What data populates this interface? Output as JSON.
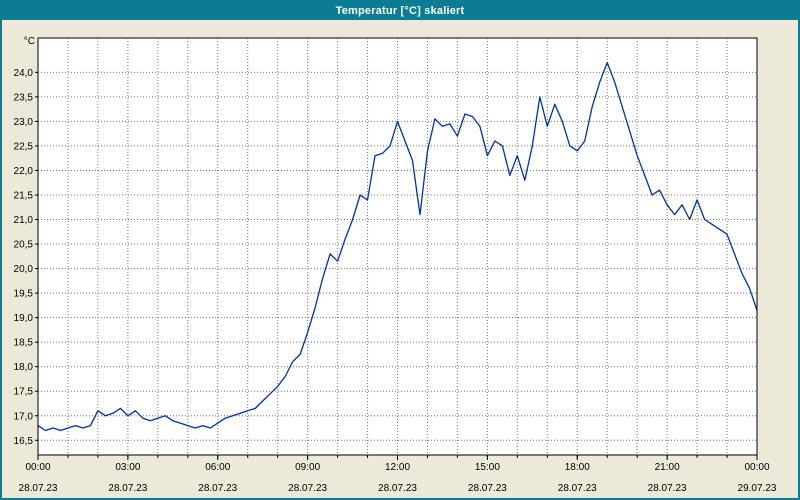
{
  "window": {
    "title": "Temperatur [°C] skaliert"
  },
  "colors": {
    "titlebar": "#0b7c94",
    "window_background": "#ece9d8",
    "plot_background": "#ffffff",
    "plot_border": "#000000",
    "grid": "#707070",
    "line": "#0033a0",
    "text": "#000000"
  },
  "chart_data": {
    "type": "line",
    "title": "Temperatur [°C] skaliert",
    "ylabel": "°C",
    "xlabel": "",
    "legend": "none",
    "grid": {
      "style": "dotted",
      "vertical_every_hours": 1,
      "horizontal_every_deg": 0.5
    },
    "xlim_hours": [
      0,
      24
    ],
    "ylim": [
      16.2,
      24.7
    ],
    "y_ticks": [
      {
        "value": 16.5,
        "label": "16,5"
      },
      {
        "value": 17.0,
        "label": "17,0"
      },
      {
        "value": 17.5,
        "label": "17,5"
      },
      {
        "value": 18.0,
        "label": "18,0"
      },
      {
        "value": 18.5,
        "label": "18,5"
      },
      {
        "value": 19.0,
        "label": "19,0"
      },
      {
        "value": 19.5,
        "label": "19,5"
      },
      {
        "value": 20.0,
        "label": "20,0"
      },
      {
        "value": 20.5,
        "label": "20,5"
      },
      {
        "value": 21.0,
        "label": "21,0"
      },
      {
        "value": 21.5,
        "label": "21,5"
      },
      {
        "value": 22.0,
        "label": "22,0"
      },
      {
        "value": 22.5,
        "label": "22,5"
      },
      {
        "value": 23.0,
        "label": "23,0"
      },
      {
        "value": 23.5,
        "label": "23,5"
      },
      {
        "value": 24.0,
        "label": "24,0"
      }
    ],
    "x_ticks": [
      {
        "hour": 0,
        "time": "00:00",
        "date": "28.07.23"
      },
      {
        "hour": 3,
        "time": "03:00",
        "date": "28.07.23"
      },
      {
        "hour": 6,
        "time": "06:00",
        "date": "28.07.23"
      },
      {
        "hour": 9,
        "time": "09:00",
        "date": "28.07.23"
      },
      {
        "hour": 12,
        "time": "12:00",
        "date": "28.07.23"
      },
      {
        "hour": 15,
        "time": "15:00",
        "date": "28.07.23"
      },
      {
        "hour": 18,
        "time": "18:00",
        "date": "28.07.23"
      },
      {
        "hour": 21,
        "time": "21:00",
        "date": "28.07.23"
      },
      {
        "hour": 24,
        "time": "00:00",
        "date": "29.07.23"
      }
    ],
    "series": [
      {
        "name": "Temperatur [°C]",
        "color": "#0033a0",
        "x_hours": [
          0,
          0.25,
          0.5,
          0.75,
          1,
          1.25,
          1.5,
          1.75,
          2,
          2.25,
          2.5,
          2.75,
          3,
          3.25,
          3.5,
          3.75,
          4,
          4.25,
          4.5,
          4.75,
          5,
          5.25,
          5.5,
          5.75,
          6,
          6.25,
          6.5,
          6.75,
          7,
          7.25,
          7.5,
          7.75,
          8,
          8.25,
          8.5,
          8.75,
          9,
          9.25,
          9.5,
          9.75,
          10,
          10.25,
          10.5,
          10.75,
          11,
          11.25,
          11.5,
          11.75,
          12,
          12.25,
          12.5,
          12.75,
          13,
          13.25,
          13.5,
          13.75,
          14,
          14.25,
          14.5,
          14.75,
          15,
          15.25,
          15.5,
          15.75,
          16,
          16.25,
          16.5,
          16.75,
          17,
          17.25,
          17.5,
          17.75,
          18,
          18.25,
          18.5,
          18.75,
          19,
          19.25,
          19.5,
          19.75,
          20,
          20.25,
          20.5,
          20.75,
          21,
          21.25,
          21.5,
          21.75,
          22,
          22.25,
          22.5,
          22.75,
          23,
          23.25,
          23.5,
          23.75,
          24
        ],
        "y": [
          16.8,
          16.7,
          16.75,
          16.7,
          16.75,
          16.8,
          16.75,
          16.8,
          17.1,
          17.0,
          17.05,
          17.15,
          17.0,
          17.1,
          16.95,
          16.9,
          16.95,
          17.0,
          16.9,
          16.85,
          16.8,
          16.75,
          16.8,
          16.75,
          16.85,
          16.95,
          17.0,
          17.05,
          17.1,
          17.15,
          17.3,
          17.45,
          17.6,
          17.8,
          18.1,
          18.25,
          18.7,
          19.2,
          19.8,
          20.3,
          20.15,
          20.6,
          21.0,
          21.5,
          21.4,
          22.3,
          22.35,
          22.5,
          23.0,
          22.6,
          22.2,
          21.1,
          22.4,
          23.05,
          22.9,
          22.95,
          22.7,
          23.15,
          23.1,
          22.9,
          22.3,
          22.6,
          22.5,
          21.9,
          22.3,
          21.8,
          22.5,
          23.5,
          22.9,
          23.35,
          23.0,
          22.5,
          22.4,
          22.6,
          23.3,
          23.8,
          24.2,
          23.8,
          23.3,
          22.8,
          22.3,
          21.9,
          21.5,
          21.6,
          21.3,
          21.1,
          21.3,
          21.0,
          21.4,
          21.0,
          20.9,
          20.8,
          20.7,
          20.3,
          19.9,
          19.6,
          19.15
        ]
      }
    ]
  }
}
